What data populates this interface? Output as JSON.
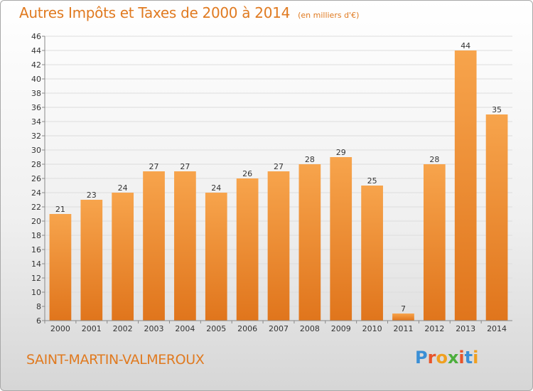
{
  "title": "Autres Impôts et Taxes de 2000 à 2014",
  "title_unit": "(en milliers d'€)",
  "location": "SAINT-MARTIN-VALMEROUX",
  "logo": {
    "text": "Proxiti",
    "letters": [
      "P",
      "r",
      "o",
      "x",
      "i",
      "t",
      "i"
    ]
  },
  "colors": {
    "accent": "#e07a20",
    "bar_light": "#f7a44c",
    "bar_dark": "#e0751c",
    "grid": "#dddddd"
  },
  "chart_data": {
    "type": "bar",
    "categories": [
      "2000",
      "2001",
      "2002",
      "2003",
      "2004",
      "2005",
      "2006",
      "2007",
      "2008",
      "2009",
      "2010",
      "2011",
      "2012",
      "2013",
      "2014"
    ],
    "values": [
      21,
      23,
      24,
      27,
      27,
      24,
      26,
      27,
      28,
      29,
      25,
      7,
      28,
      44,
      35
    ],
    "ylim": [
      6,
      46
    ],
    "yticks": [
      6,
      8,
      10,
      12,
      14,
      16,
      18,
      20,
      22,
      24,
      26,
      28,
      30,
      32,
      34,
      36,
      38,
      40,
      42,
      44,
      46
    ],
    "grid": true,
    "data_labels": true,
    "legend": "none"
  }
}
